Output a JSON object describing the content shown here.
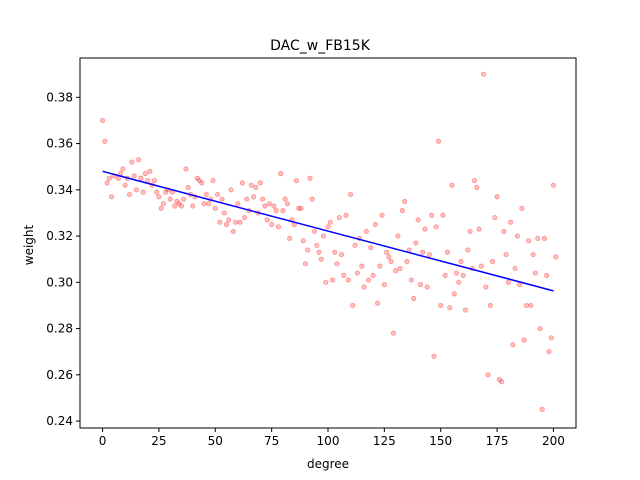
{
  "chart_data": {
    "type": "scatter",
    "title": "DAC_w_FB15K",
    "xlabel": "degree",
    "ylabel": "weight",
    "xlim": [
      -10,
      210
    ],
    "ylim": [
      0.237,
      0.397
    ],
    "x_ticks": [
      0,
      25,
      50,
      75,
      100,
      125,
      150,
      175,
      200
    ],
    "y_ticks": [
      0.24,
      0.26,
      0.28,
      0.3,
      0.32,
      0.34,
      0.36,
      0.38
    ],
    "grid": false,
    "legend": "none",
    "scatter_color": "#ff0000",
    "line_color": "#0000ff",
    "series": [
      {
        "kind": "scatter",
        "points": [
          [
            0,
            0.37
          ],
          [
            1,
            0.361
          ],
          [
            2,
            0.343
          ],
          [
            3,
            0.345
          ],
          [
            4,
            0.337
          ],
          [
            5,
            0.346
          ],
          [
            7,
            0.345
          ],
          [
            8,
            0.347
          ],
          [
            9,
            0.349
          ],
          [
            10,
            0.342
          ],
          [
            11,
            0.345
          ],
          [
            12,
            0.338
          ],
          [
            13,
            0.352
          ],
          [
            14,
            0.346
          ],
          [
            15,
            0.34
          ],
          [
            16,
            0.353
          ],
          [
            17,
            0.345
          ],
          [
            18,
            0.339
          ],
          [
            19,
            0.347
          ],
          [
            20,
            0.344
          ],
          [
            21,
            0.348
          ],
          [
            22,
            0.342
          ],
          [
            23,
            0.344
          ],
          [
            24,
            0.339
          ],
          [
            25,
            0.337
          ],
          [
            26,
            0.332
          ],
          [
            27,
            0.334
          ],
          [
            28,
            0.339
          ],
          [
            29,
            0.34
          ],
          [
            30,
            0.336
          ],
          [
            31,
            0.339
          ],
          [
            32,
            0.333
          ],
          [
            33,
            0.335
          ],
          [
            34,
            0.334
          ],
          [
            35,
            0.333
          ],
          [
            36,
            0.336
          ],
          [
            37,
            0.349
          ],
          [
            38,
            0.341
          ],
          [
            39,
            0.338
          ],
          [
            40,
            0.333
          ],
          [
            41,
            0.337
          ],
          [
            42,
            0.345
          ],
          [
            43,
            0.344
          ],
          [
            44,
            0.343
          ],
          [
            45,
            0.334
          ],
          [
            46,
            0.338
          ],
          [
            47,
            0.334
          ],
          [
            48,
            0.336
          ],
          [
            49,
            0.344
          ],
          [
            50,
            0.332
          ],
          [
            51,
            0.338
          ],
          [
            52,
            0.326
          ],
          [
            53,
            0.336
          ],
          [
            54,
            0.33
          ],
          [
            55,
            0.325
          ],
          [
            56,
            0.327
          ],
          [
            57,
            0.34
          ],
          [
            58,
            0.322
          ],
          [
            59,
            0.326
          ],
          [
            60,
            0.334
          ],
          [
            61,
            0.326
          ],
          [
            62,
            0.343
          ],
          [
            63,
            0.328
          ],
          [
            64,
            0.336
          ],
          [
            65,
            0.331
          ],
          [
            66,
            0.342
          ],
          [
            67,
            0.337
          ],
          [
            68,
            0.341
          ],
          [
            69,
            0.33
          ],
          [
            70,
            0.343
          ],
          [
            71,
            0.336
          ],
          [
            72,
            0.333
          ],
          [
            73,
            0.327
          ],
          [
            74,
            0.334
          ],
          [
            75,
            0.325
          ],
          [
            76,
            0.333
          ],
          [
            77,
            0.331
          ],
          [
            78,
            0.324
          ],
          [
            79,
            0.347
          ],
          [
            80,
            0.331
          ],
          [
            81,
            0.336
          ],
          [
            82,
            0.334
          ],
          [
            83,
            0.319
          ],
          [
            84,
            0.327
          ],
          [
            85,
            0.325
          ],
          [
            86,
            0.344
          ],
          [
            87,
            0.332
          ],
          [
            88,
            0.332
          ],
          [
            89,
            0.318
          ],
          [
            90,
            0.308
          ],
          [
            91,
            0.314
          ],
          [
            92,
            0.345
          ],
          [
            93,
            0.336
          ],
          [
            94,
            0.322
          ],
          [
            95,
            0.316
          ],
          [
            96,
            0.313
          ],
          [
            97,
            0.31
          ],
          [
            98,
            0.32
          ],
          [
            99,
            0.3
          ],
          [
            100,
            0.324
          ],
          [
            101,
            0.326
          ],
          [
            102,
            0.301
          ],
          [
            103,
            0.313
          ],
          [
            104,
            0.308
          ],
          [
            105,
            0.328
          ],
          [
            106,
            0.312
          ],
          [
            107,
            0.303
          ],
          [
            108,
            0.329
          ],
          [
            109,
            0.301
          ],
          [
            110,
            0.338
          ],
          [
            111,
            0.29
          ],
          [
            112,
            0.316
          ],
          [
            113,
            0.304
          ],
          [
            114,
            0.319
          ],
          [
            115,
            0.307
          ],
          [
            116,
            0.298
          ],
          [
            117,
            0.322
          ],
          [
            118,
            0.301
          ],
          [
            119,
            0.315
          ],
          [
            120,
            0.303
          ],
          [
            121,
            0.325
          ],
          [
            122,
            0.291
          ],
          [
            123,
            0.307
          ],
          [
            124,
            0.329
          ],
          [
            125,
            0.299
          ],
          [
            126,
            0.313
          ],
          [
            127,
            0.311
          ],
          [
            128,
            0.309
          ],
          [
            129,
            0.278
          ],
          [
            130,
            0.305
          ],
          [
            131,
            0.32
          ],
          [
            132,
            0.306
          ],
          [
            133,
            0.331
          ],
          [
            134,
            0.335
          ],
          [
            135,
            0.309
          ],
          [
            136,
            0.314
          ],
          [
            137,
            0.301
          ],
          [
            138,
            0.293
          ],
          [
            139,
            0.317
          ],
          [
            140,
            0.327
          ],
          [
            141,
            0.299
          ],
          [
            142,
            0.313
          ],
          [
            143,
            0.323
          ],
          [
            144,
            0.298
          ],
          [
            145,
            0.312
          ],
          [
            146,
            0.329
          ],
          [
            147,
            0.268
          ],
          [
            148,
            0.324
          ],
          [
            149,
            0.361
          ],
          [
            150,
            0.29
          ],
          [
            151,
            0.329
          ],
          [
            152,
            0.303
          ],
          [
            153,
            0.313
          ],
          [
            154,
            0.289
          ],
          [
            155,
            0.342
          ],
          [
            156,
            0.295
          ],
          [
            157,
            0.304
          ],
          [
            158,
            0.3
          ],
          [
            159,
            0.309
          ],
          [
            160,
            0.303
          ],
          [
            161,
            0.288
          ],
          [
            162,
            0.314
          ],
          [
            163,
            0.322
          ],
          [
            164,
            0.306
          ],
          [
            165,
            0.344
          ],
          [
            166,
            0.341
          ],
          [
            167,
            0.323
          ],
          [
            168,
            0.307
          ],
          [
            169,
            0.39
          ],
          [
            170,
            0.298
          ],
          [
            171,
            0.26
          ],
          [
            172,
            0.29
          ],
          [
            173,
            0.309
          ],
          [
            174,
            0.328
          ],
          [
            175,
            0.337
          ],
          [
            176,
            0.258
          ],
          [
            177,
            0.257
          ],
          [
            178,
            0.322
          ],
          [
            179,
            0.312
          ],
          [
            180,
            0.3
          ],
          [
            181,
            0.326
          ],
          [
            182,
            0.273
          ],
          [
            183,
            0.306
          ],
          [
            184,
            0.32
          ],
          [
            185,
            0.299
          ],
          [
            186,
            0.332
          ],
          [
            187,
            0.275
          ],
          [
            188,
            0.29
          ],
          [
            189,
            0.318
          ],
          [
            190,
            0.29
          ],
          [
            191,
            0.312
          ],
          [
            192,
            0.304
          ],
          [
            193,
            0.319
          ],
          [
            194,
            0.28
          ],
          [
            195,
            0.245
          ],
          [
            196,
            0.319
          ],
          [
            197,
            0.303
          ],
          [
            198,
            0.27
          ],
          [
            199,
            0.276
          ],
          [
            200,
            0.342
          ],
          [
            201,
            0.311
          ]
        ]
      },
      {
        "kind": "line",
        "points": [
          [
            0,
            0.348
          ],
          [
            200,
            0.2963
          ]
        ]
      }
    ]
  }
}
